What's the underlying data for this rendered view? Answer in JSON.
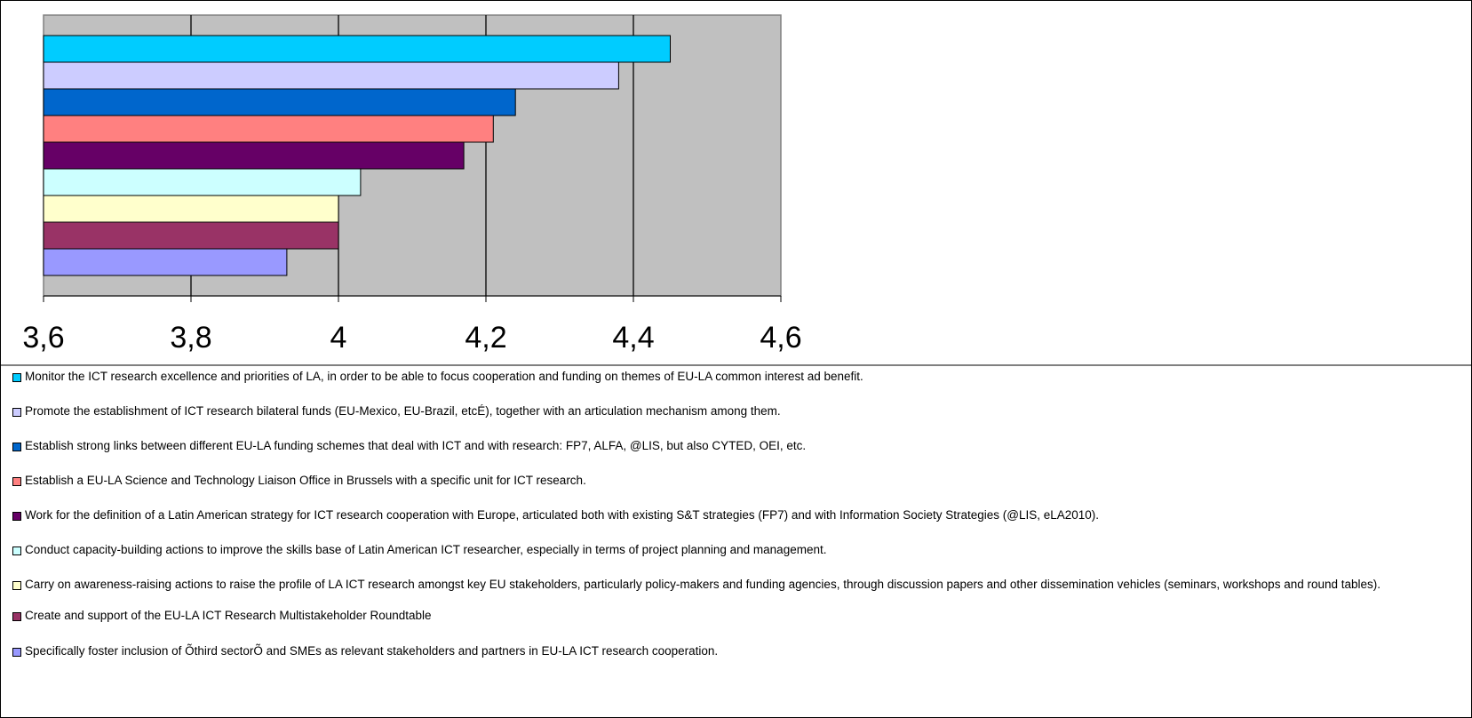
{
  "chart_data": {
    "type": "bar",
    "orientation": "horizontal",
    "xlim": [
      3.6,
      4.6
    ],
    "ticks": [
      "3,6",
      "3,8",
      "4",
      "4,2",
      "4,4",
      "4,6"
    ],
    "tick_values": [
      3.6,
      3.8,
      4.0,
      4.2,
      4.4,
      4.6
    ],
    "grid": true,
    "plot_background": "#c0c0c0",
    "legend_position": "bottom",
    "series": [
      {
        "name": "Monitor the ICT research excellence and priorities of LA, in order to be able to focus cooperation and funding on themes of EU-LA common interest ad benefit.",
        "value": 4.45,
        "color": "#00ccff"
      },
      {
        "name": "Promote the establishment of ICT research bilateral funds (EU-Mexico, EU-Brazil, etcÉ), together with an articulation mechanism among them.",
        "value": 4.38,
        "color": "#ccccff"
      },
      {
        "name": "Establish strong links between different EU-LA funding schemes that deal with ICT and with research: FP7, ALFA, @LIS, but also CYTED, OEI, etc.",
        "value": 4.24,
        "color": "#0066cc"
      },
      {
        "name": "Establish a EU-LA Science and Technology Liaison Office in Brussels with a specific unit for ICT research.",
        "value": 4.21,
        "color": "#ff8080"
      },
      {
        "name": "Work for the definition of a Latin American strategy for ICT research cooperation with Europe, articulated both with existing S&T strategies (FP7) and with Information Society Strategies (@LIS, eLA2010).",
        "value": 4.17,
        "color": "#660066"
      },
      {
        "name": "Conduct capacity-building actions to improve the skills base of Latin American ICT researcher, especially in terms of project planning and management.",
        "value": 4.03,
        "color": "#ccffff"
      },
      {
        "name": "Carry on awareness-raising actions to raise the profile of LA ICT research amongst key EU stakeholders, particularly policy-makers and funding agencies, through discussion papers and other dissemination vehicles (seminars, workshops and round tables).",
        "value": 4.0,
        "color": "#ffffcc"
      },
      {
        "name": "Create and support of the EU-LA ICT Research Multistakeholder Roundtable",
        "value": 4.0,
        "color": "#993366"
      },
      {
        "name": "Specifically foster inclusion of Õthird sectorÕ and SMEs as relevant stakeholders and partners in EU-LA ICT research cooperation.",
        "value": 3.93,
        "color": "#9999ff"
      }
    ]
  }
}
